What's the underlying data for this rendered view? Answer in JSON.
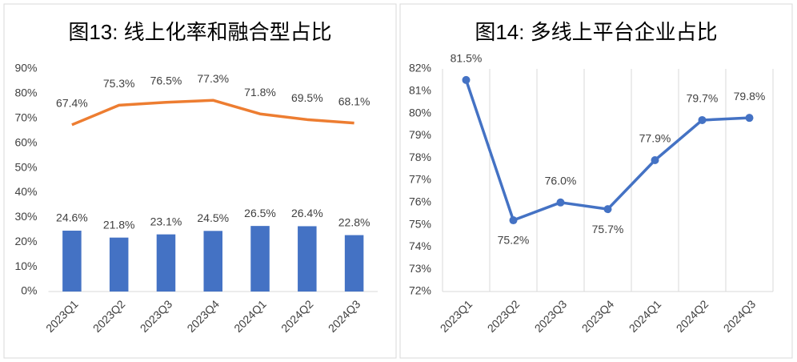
{
  "chart_data": [
    {
      "type": "bar",
      "title": "图13: 线上化率和融合型占比",
      "categories": [
        "2023Q1",
        "2023Q2",
        "2023Q3",
        "2023Q4",
        "2024Q1",
        "2024Q2",
        "2024Q3"
      ],
      "series": [
        {
          "type": "bar",
          "color": "#4472c4",
          "values": [
            24.6,
            21.8,
            23.1,
            24.5,
            26.5,
            26.4,
            22.8
          ],
          "value_labels": [
            "24.6%",
            "21.8%",
            "23.1%",
            "24.5%",
            "26.5%",
            "26.4%",
            "22.8%"
          ]
        },
        {
          "type": "line",
          "color": "#ed7d31",
          "values": [
            67.4,
            75.3,
            76.5,
            77.3,
            71.8,
            69.5,
            68.1
          ],
          "value_labels": [
            "67.4%",
            "75.3%",
            "76.5%",
            "77.3%",
            "71.8%",
            "69.5%",
            "68.1%"
          ]
        }
      ],
      "ylim": [
        0,
        90
      ],
      "yticks": [
        {
          "value": 0,
          "label": "0%"
        },
        {
          "value": 10,
          "label": "10%"
        },
        {
          "value": 20,
          "label": "20%"
        },
        {
          "value": 30,
          "label": "30%"
        },
        {
          "value": 40,
          "label": "40%"
        },
        {
          "value": 50,
          "label": "50%"
        },
        {
          "value": 60,
          "label": "60%"
        },
        {
          "value": 70,
          "label": "70%"
        },
        {
          "value": 80,
          "label": "80%"
        },
        {
          "value": 90,
          "label": "90%"
        }
      ],
      "grid": false
    },
    {
      "type": "line",
      "title": "图14: 多线上平台企业占比",
      "categories": [
        "2023Q1",
        "2023Q2",
        "2023Q3",
        "2023Q4",
        "2024Q1",
        "2024Q2",
        "2024Q3"
      ],
      "series": [
        {
          "type": "line",
          "color": "#4472c4",
          "values": [
            81.5,
            75.2,
            76.0,
            75.7,
            77.9,
            79.7,
            79.8
          ],
          "value_labels": [
            "81.5%",
            "75.2%",
            "76.0%",
            "75.7%",
            "77.9%",
            "79.7%",
            "79.8%"
          ]
        }
      ],
      "ylim": [
        72,
        82
      ],
      "yticks": [
        {
          "value": 72,
          "label": "72%"
        },
        {
          "value": 73,
          "label": "73%"
        },
        {
          "value": 74,
          "label": "74%"
        },
        {
          "value": 75,
          "label": "75%"
        },
        {
          "value": 76,
          "label": "76%"
        },
        {
          "value": 77,
          "label": "77%"
        },
        {
          "value": 78,
          "label": "78%"
        },
        {
          "value": 79,
          "label": "79%"
        },
        {
          "value": 80,
          "label": "80%"
        },
        {
          "value": 81,
          "label": "81%"
        },
        {
          "value": 82,
          "label": "82%"
        }
      ],
      "grid": "x"
    }
  ]
}
